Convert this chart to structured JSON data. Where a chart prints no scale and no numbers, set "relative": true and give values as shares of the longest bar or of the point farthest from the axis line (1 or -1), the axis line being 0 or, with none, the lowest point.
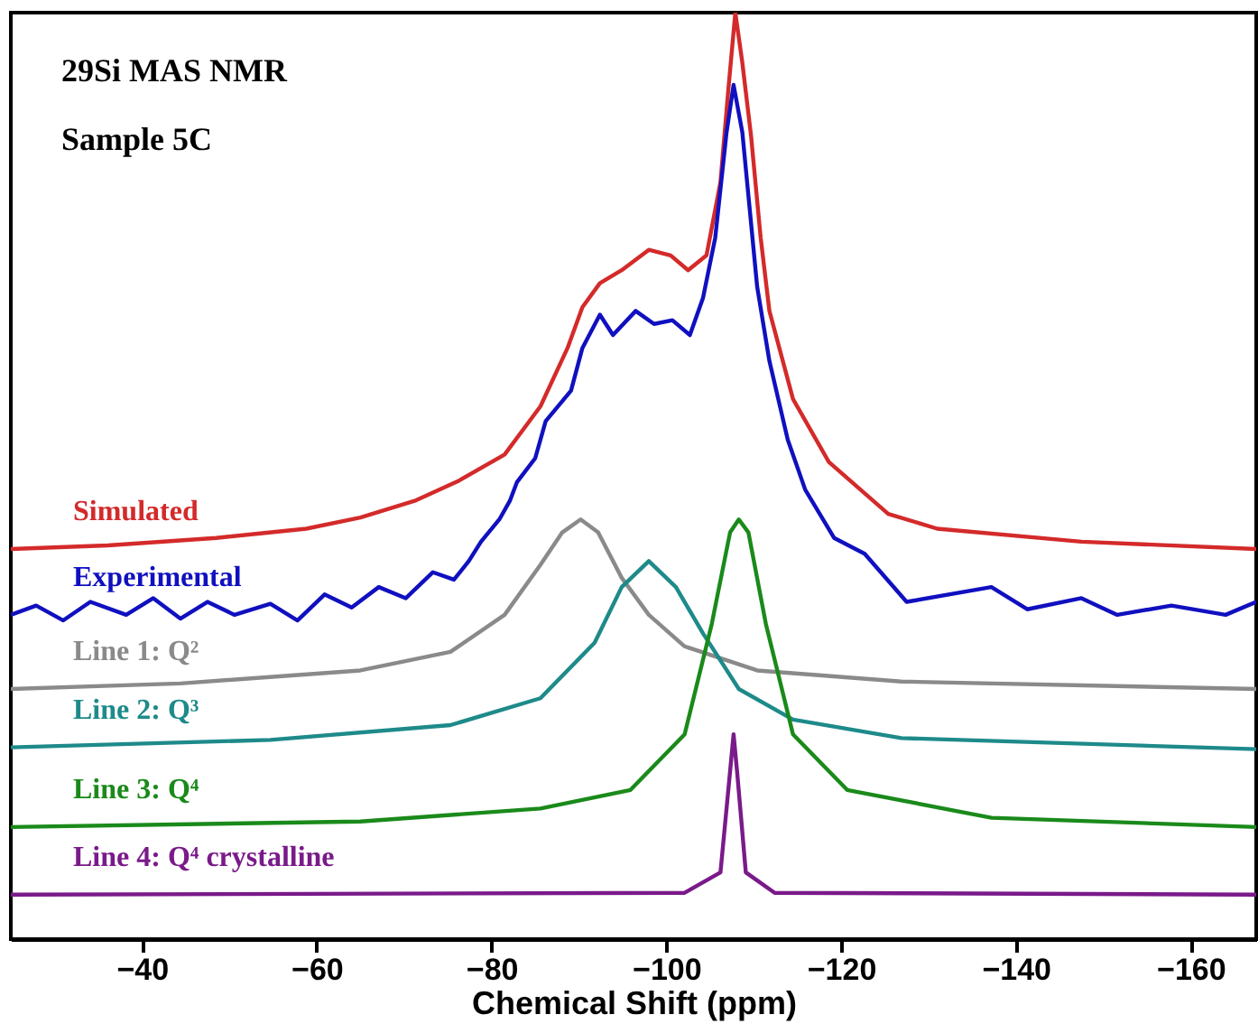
{
  "chart_data": {
    "type": "line",
    "title": "29Si MAS NMR",
    "subtitle": "Sample 5C",
    "xlabel": "Chemical Shift (ppm)",
    "relative": true,
    "legend": false,
    "grid": false,
    "marker": "none",
    "line_style": "solid",
    "xlim": [
      -25,
      -167.5
    ],
    "xticks": [
      -40,
      -60,
      -80,
      -100,
      -120,
      -140,
      -160
    ],
    "series": [
      {
        "name": "Simulated",
        "color": "#d42a2a",
        "x": [
          -25,
          -36.1,
          -48.5,
          -58.8,
          -65.0,
          -71.2,
          -76.3,
          -81.5,
          -85.6,
          -88.7,
          -90.4,
          -92.4,
          -94.9,
          -98.0,
          -100.5,
          -102.5,
          -104.6,
          -106.2,
          -107.1,
          -107.9,
          -108.7,
          -109.7,
          -110.8,
          -111.8,
          -114.5,
          -118.6,
          -125.4,
          -131.0,
          -147.5,
          -167.5
        ],
        "values": [
          0.421,
          0.425,
          0.433,
          0.443,
          0.455,
          0.473,
          0.495,
          0.523,
          0.575,
          0.638,
          0.682,
          0.708,
          0.722,
          0.744,
          0.738,
          0.722,
          0.738,
          0.817,
          0.917,
          1.0,
          0.946,
          0.867,
          0.757,
          0.678,
          0.583,
          0.515,
          0.459,
          0.443,
          0.429,
          0.421
        ]
      },
      {
        "name": "Experimental",
        "color": "#1010c0",
        "x": [
          -25,
          -27.9,
          -31.0,
          -34.1,
          -38.2,
          -41.3,
          -44.4,
          -47.5,
          -50.6,
          -54.7,
          -57.8,
          -60.9,
          -64.0,
          -67.1,
          -70.2,
          -73.3,
          -75.7,
          -77.4,
          -78.8,
          -80.9,
          -82.1,
          -82.9,
          -85.0,
          -86.2,
          -89.1,
          -90.4,
          -92.4,
          -93.9,
          -96.5,
          -98.6,
          -100.7,
          -102.7,
          -104.2,
          -105.6,
          -106.9,
          -107.7,
          -108.7,
          -110.4,
          -111.8,
          -113.9,
          -115.9,
          -119.2,
          -122.7,
          -127.5,
          -137.2,
          -141.3,
          -147.5,
          -151.6,
          -157.8,
          -164.0,
          -167.5
        ],
        "values": [
          0.35,
          0.36,
          0.344,
          0.364,
          0.35,
          0.368,
          0.346,
          0.364,
          0.35,
          0.362,
          0.344,
          0.372,
          0.358,
          0.38,
          0.368,
          0.396,
          0.388,
          0.408,
          0.429,
          0.453,
          0.473,
          0.493,
          0.519,
          0.559,
          0.592,
          0.638,
          0.674,
          0.652,
          0.678,
          0.664,
          0.668,
          0.652,
          0.692,
          0.757,
          0.871,
          0.922,
          0.871,
          0.704,
          0.624,
          0.539,
          0.485,
          0.433,
          0.416,
          0.364,
          0.38,
          0.356,
          0.368,
          0.35,
          0.36,
          0.35,
          0.364
        ]
      },
      {
        "name": "Line 1: Q²",
        "color": "#8a8a8a",
        "x": [
          -25,
          -44.4,
          -65.0,
          -75.3,
          -81.5,
          -85.6,
          -88.1,
          -90.2,
          -92.2,
          -94.9,
          -98.0,
          -102.1,
          -110.4,
          -126.9,
          -167.5
        ],
        "values": [
          0.27,
          0.276,
          0.29,
          0.31,
          0.35,
          0.404,
          0.439,
          0.453,
          0.439,
          0.39,
          0.35,
          0.316,
          0.29,
          0.278,
          0.27
        ]
      },
      {
        "name": "Line 2: Q³",
        "color": "#1e8a8a",
        "x": [
          -25,
          -54.7,
          -75.3,
          -85.6,
          -91.8,
          -94.9,
          -98.0,
          -101.1,
          -104.2,
          -108.3,
          -114.5,
          -126.9,
          -167.5
        ],
        "values": [
          0.207,
          0.215,
          0.231,
          0.26,
          0.32,
          0.38,
          0.408,
          0.38,
          0.33,
          0.27,
          0.237,
          0.217,
          0.205
        ]
      },
      {
        "name": "Line 3: Q⁴",
        "color": "#1a8a1a",
        "x": [
          -25,
          -65.0,
          -85.6,
          -95.9,
          -102.1,
          -105.2,
          -107.3,
          -108.3,
          -109.4,
          -111.4,
          -114.5,
          -120.7,
          -137.2,
          -167.5
        ],
        "values": [
          0.121,
          0.127,
          0.141,
          0.161,
          0.221,
          0.34,
          0.439,
          0.453,
          0.439,
          0.34,
          0.221,
          0.161,
          0.131,
          0.121
        ]
      },
      {
        "name": "Line 4: Q⁴ crystalline",
        "color": "#7a1a8a",
        "x": [
          -25,
          -102.1,
          -106.2,
          -107.3,
          -107.7,
          -108.1,
          -109.1,
          -112.4,
          -167.5
        ],
        "values": [
          0.048,
          0.05,
          0.072,
          0.181,
          0.221,
          0.181,
          0.072,
          0.05,
          0.048
        ]
      }
    ]
  }
}
